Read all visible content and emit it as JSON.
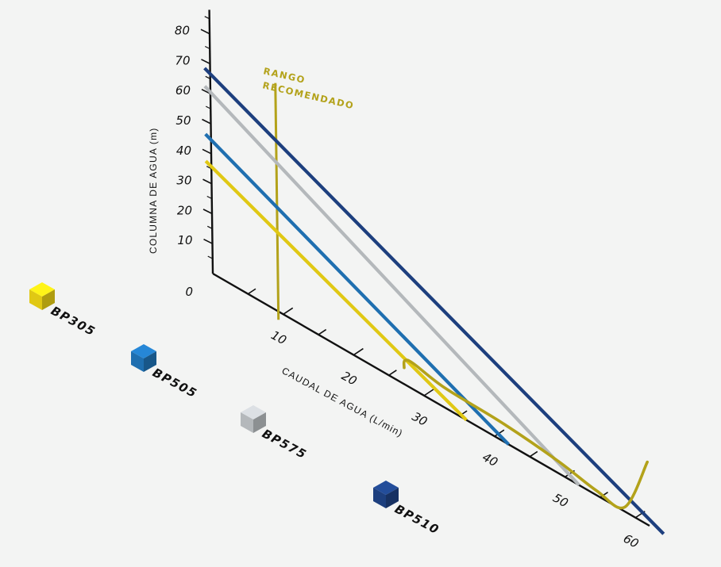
{
  "chart_data": {
    "type": "line",
    "xlabel": "CAUDAL DE AGUA (L/min)",
    "ylabel": "COLUMNA DE AGUA (m)",
    "x_ticks": [
      10,
      20,
      30,
      40,
      50,
      60
    ],
    "y_ticks": [
      0,
      10,
      20,
      30,
      40,
      50,
      60,
      70,
      80
    ],
    "xlim": [
      0,
      60
    ],
    "ylim": [
      0,
      80
    ],
    "recommended_range": {
      "label_line1": "RANGO",
      "label_line2": "RECOMENDADO",
      "x": 10,
      "color": "#b3a21a"
    },
    "series": [
      {
        "name": "BP305",
        "color": "#e0c814",
        "points": [
          [
            0,
            37
          ],
          [
            36,
            0
          ]
        ]
      },
      {
        "name": "BP505",
        "color": "#1f6fb0",
        "points": [
          [
            0,
            46
          ],
          [
            42,
            0
          ]
        ]
      },
      {
        "name": "BP575",
        "color": "#b4b8bb",
        "points": [
          [
            0,
            62
          ],
          [
            52,
            0
          ]
        ]
      },
      {
        "name": "BP510",
        "color": "#1d3f7e",
        "points": [
          [
            0,
            68
          ],
          [
            64,
            0
          ]
        ]
      }
    ],
    "efficiency_curve": {
      "color": "#b3a21a",
      "points": [
        [
          27.2,
          5.5
        ],
        [
          27.3,
          8.0
        ],
        [
          28.5,
          8.7
        ],
        [
          33.0,
          6.6
        ],
        [
          41.0,
          6.0
        ],
        [
          49.0,
          4.0
        ],
        [
          54.5,
          1.5
        ],
        [
          58.5,
          1.5
        ],
        [
          61.8,
          21.0
        ]
      ]
    }
  },
  "legend": [
    {
      "label": "BP305",
      "color": "#e0c814"
    },
    {
      "label": "BP505",
      "color": "#1f6fb0"
    },
    {
      "label": "BP575",
      "color": "#b4b8bb"
    },
    {
      "label": "BP510",
      "color": "#1d3f7e"
    }
  ]
}
